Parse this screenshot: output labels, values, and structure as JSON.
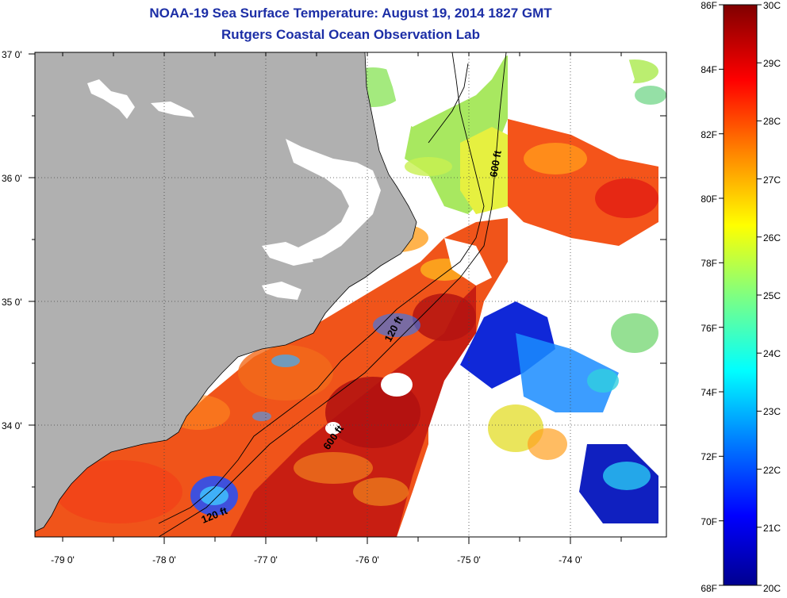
{
  "title": {
    "line1": "NOAA-19 Sea Surface Temperature:  August 19, 2014 1827 GMT",
    "line2": "Rutgers Coastal Ocean Observation Lab"
  },
  "map": {
    "lat_labels": [
      "37 0'",
      "36 0'",
      "35 0'",
      "34 0'"
    ],
    "lon_labels": [
      "-79 0'",
      "-78 0'",
      "-77 0'",
      "-76 0'",
      "-75 0'",
      "-74 0'"
    ],
    "contour_labels": [
      "600 ft",
      "120 ft",
      "600 ft",
      "120 ft"
    ]
  },
  "colorbar": {
    "fahrenheit_labels": [
      "86F",
      "84F",
      "82F",
      "80F",
      "78F",
      "76F",
      "74F",
      "72F",
      "70F",
      "68F"
    ],
    "celsius_labels": [
      "30C",
      "29C",
      "28C",
      "27C",
      "26C",
      "25C",
      "24C",
      "23C",
      "22C",
      "21C",
      "20C"
    ],
    "colors": [
      "#00008f",
      "#0000ff",
      "#0080ff",
      "#00ffff",
      "#80ff80",
      "#ffff00",
      "#ff8000",
      "#ff0000",
      "#800000"
    ]
  },
  "colors": {
    "land": "#b0b0b0",
    "title": "#1c2ea6",
    "no_data": "#ffffff"
  }
}
